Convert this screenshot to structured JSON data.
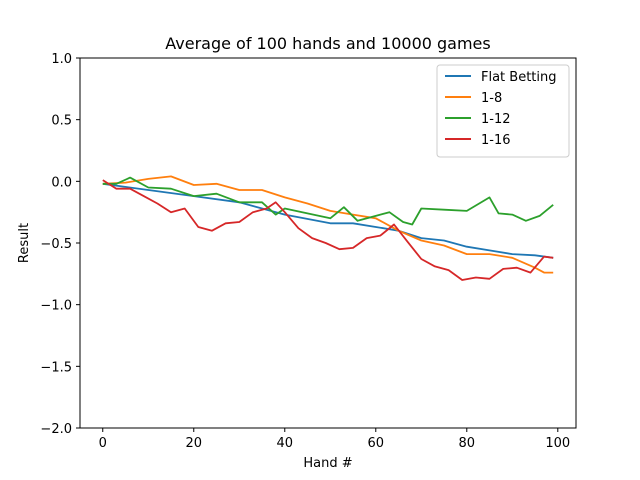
{
  "chart_data": {
    "type": "line",
    "title": "Average of 100 hands and 10000 games",
    "xlabel": "Hand #",
    "ylabel": "Result",
    "xlim": [
      -5,
      104
    ],
    "ylim": [
      -2.0,
      1.0
    ],
    "xticks": [
      0,
      20,
      40,
      60,
      80,
      100
    ],
    "yticks": [
      -2.0,
      -1.5,
      -1.0,
      -0.5,
      0.0,
      0.5,
      1.0
    ],
    "xtick_labels": [
      "0",
      "20",
      "40",
      "60",
      "80",
      "100"
    ],
    "ytick_labels": [
      "−2.0",
      "−1.5",
      "−1.0",
      "−0.5",
      "0.0",
      "0.5",
      "1.0"
    ],
    "grid": false,
    "legend": "top-right",
    "series": [
      {
        "name": "Flat Betting",
        "color": "#1f77b4",
        "x": [
          0,
          10,
          20,
          30,
          40,
          50,
          55,
          60,
          65,
          70,
          75,
          80,
          85,
          90,
          95,
          99
        ],
        "y": [
          -0.02,
          -0.07,
          -0.12,
          -0.17,
          -0.27,
          -0.34,
          -0.34,
          -0.37,
          -0.4,
          -0.46,
          -0.48,
          -0.53,
          -0.56,
          -0.59,
          -0.6,
          -0.62
        ]
      },
      {
        "name": "1-8",
        "color": "#ff7f0e",
        "x": [
          0,
          5,
          10,
          15,
          20,
          25,
          30,
          35,
          40,
          45,
          50,
          55,
          60,
          65,
          70,
          75,
          80,
          85,
          90,
          95,
          97,
          99
        ],
        "y": [
          -0.02,
          -0.01,
          0.02,
          0.04,
          -0.03,
          -0.02,
          -0.07,
          -0.07,
          -0.13,
          -0.18,
          -0.24,
          -0.27,
          -0.3,
          -0.4,
          -0.48,
          -0.52,
          -0.59,
          -0.59,
          -0.62,
          -0.7,
          -0.74,
          -0.74
        ]
      },
      {
        "name": "1-12",
        "color": "#2ca02c",
        "x": [
          0,
          3,
          6,
          10,
          15,
          20,
          25,
          30,
          35,
          38,
          40,
          45,
          50,
          53,
          56,
          60,
          63,
          66,
          68,
          70,
          75,
          80,
          85,
          87,
          90,
          93,
          96,
          99
        ],
        "y": [
          -0.02,
          -0.02,
          0.03,
          -0.05,
          -0.06,
          -0.12,
          -0.1,
          -0.17,
          -0.17,
          -0.27,
          -0.22,
          -0.26,
          -0.3,
          -0.21,
          -0.32,
          -0.28,
          -0.25,
          -0.33,
          -0.35,
          -0.22,
          -0.23,
          -0.24,
          -0.13,
          -0.26,
          -0.27,
          -0.32,
          -0.28,
          -0.19
        ]
      },
      {
        "name": "1-16",
        "color": "#d62728",
        "x": [
          0,
          3,
          6,
          9,
          12,
          15,
          18,
          21,
          24,
          27,
          30,
          33,
          36,
          38,
          40,
          43,
          46,
          49,
          52,
          55,
          58,
          61,
          64,
          67,
          70,
          73,
          76,
          79,
          82,
          85,
          88,
          91,
          94,
          97,
          99
        ],
        "y": [
          0.01,
          -0.06,
          -0.06,
          -0.12,
          -0.18,
          -0.25,
          -0.22,
          -0.37,
          -0.4,
          -0.34,
          -0.33,
          -0.25,
          -0.22,
          -0.17,
          -0.25,
          -0.38,
          -0.46,
          -0.5,
          -0.55,
          -0.54,
          -0.46,
          -0.44,
          -0.35,
          -0.49,
          -0.63,
          -0.69,
          -0.72,
          -0.8,
          -0.78,
          -0.79,
          -0.71,
          -0.7,
          -0.74,
          -0.61,
          -0.62
        ]
      }
    ]
  }
}
